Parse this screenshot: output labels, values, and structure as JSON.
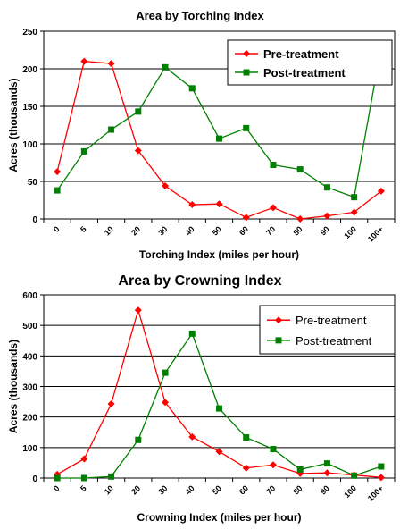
{
  "chart_data": [
    {
      "type": "line",
      "title": "Area by Torching Index",
      "xlabel": "Torching Index (miles per hour)",
      "ylabel": "Acres (thousands)",
      "categories": [
        "0",
        "5",
        "10",
        "20",
        "30",
        "40",
        "50",
        "60",
        "70",
        "80",
        "90",
        "100",
        "100+"
      ],
      "yticks": [
        "0",
        "50",
        "100",
        "150",
        "200",
        "250"
      ],
      "ylim": [
        0,
        250
      ],
      "grid": "horizontal",
      "legend_position": "top-right",
      "series": [
        {
          "name": "Pre-treatment",
          "color": "#ff0000",
          "marker": "diamond",
          "values": [
            63,
            210,
            207,
            91,
            44,
            19,
            20,
            2,
            15,
            0,
            4,
            9,
            37
          ]
        },
        {
          "name": "Post-treatment",
          "color": "#008000",
          "marker": "square",
          "values": [
            38,
            90,
            119,
            143,
            202,
            174,
            107,
            121,
            72,
            66,
            42,
            29,
            229
          ]
        }
      ]
    },
    {
      "type": "line",
      "title": "Area by Crowning Index",
      "xlabel": "Crowning Index (miles per hour)",
      "ylabel": "Acres (thousands)",
      "categories": [
        "0",
        "5",
        "10",
        "20",
        "30",
        "40",
        "50",
        "60",
        "70",
        "80",
        "90",
        "100",
        "100+"
      ],
      "yticks": [
        "0",
        "100",
        "200",
        "300",
        "400",
        "500",
        "600"
      ],
      "ylim": [
        0,
        600
      ],
      "grid": "horizontal",
      "legend_position": "top-right",
      "series": [
        {
          "name": "Pre-treatment",
          "color": "#ff0000",
          "marker": "diamond",
          "values": [
            12,
            63,
            243,
            550,
            248,
            135,
            87,
            33,
            43,
            15,
            17,
            10,
            2
          ]
        },
        {
          "name": "Post-treatment",
          "color": "#008000",
          "marker": "square",
          "values": [
            0,
            0,
            5,
            125,
            345,
            473,
            228,
            133,
            95,
            28,
            48,
            8,
            38
          ]
        }
      ]
    }
  ]
}
